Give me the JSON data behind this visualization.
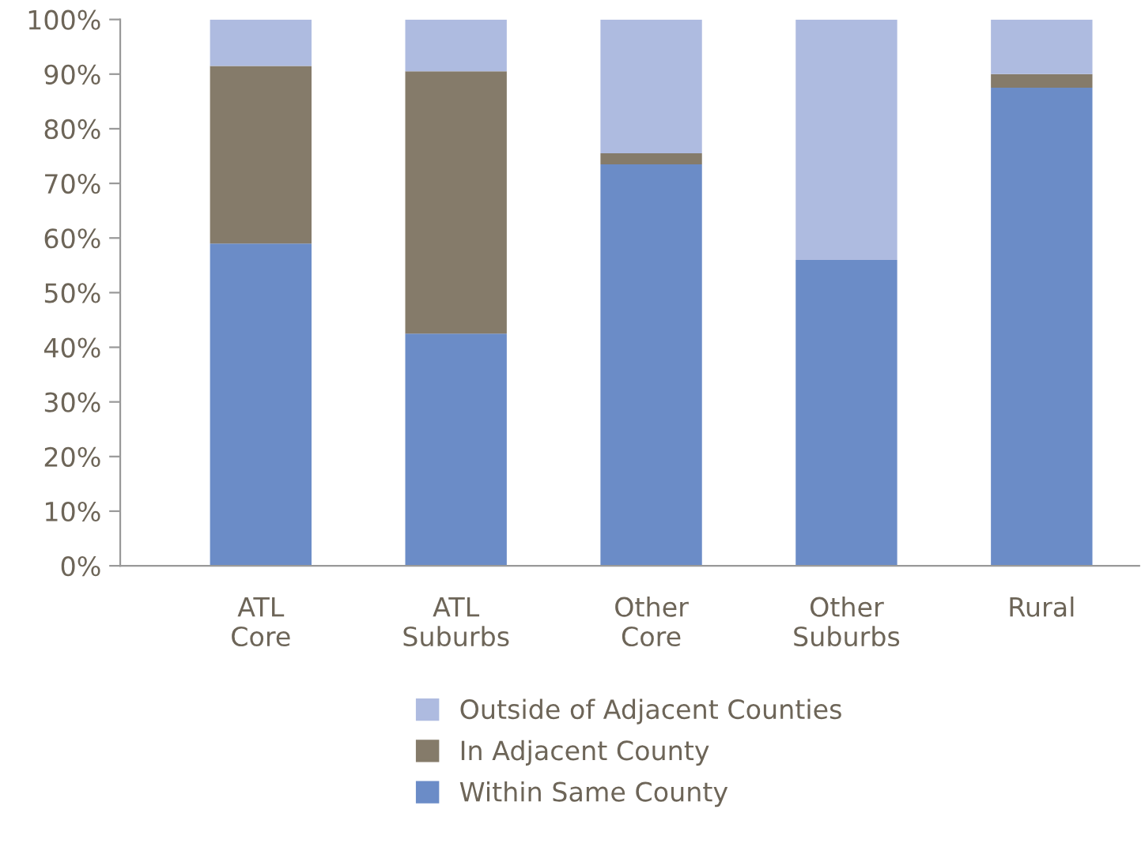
{
  "chart_data": {
    "type": "bar",
    "stacked": true,
    "categories": [
      "ATL\nCore",
      "ATL\nSuburbs",
      "Other\nCore",
      "Other\nSuburbs",
      "Rural"
    ],
    "series": [
      {
        "name": "Within Same County",
        "color": "#6b8cc7",
        "values": [
          59,
          42.5,
          73.5,
          56,
          87.5
        ]
      },
      {
        "name": "In Adjacent County",
        "color": "#857b6a",
        "values": [
          32.5,
          48,
          2,
          0,
          2.5
        ]
      },
      {
        "name": "Outside of Adjacent Counties",
        "color": "#aebbe0",
        "values": [
          8.5,
          9.5,
          24.5,
          44,
          10
        ]
      }
    ],
    "ylim": [
      0,
      100
    ],
    "yticks": [
      {
        "value": 0,
        "label": "0%"
      },
      {
        "value": 10,
        "label": "10%"
      },
      {
        "value": 20,
        "label": "20%"
      },
      {
        "value": 30,
        "label": "30%"
      },
      {
        "value": 40,
        "label": "40%"
      },
      {
        "value": 50,
        "label": "50%"
      },
      {
        "value": 60,
        "label": "60%"
      },
      {
        "value": 70,
        "label": "70%"
      },
      {
        "value": 80,
        "label": "80%"
      },
      {
        "value": 90,
        "label": "90%"
      },
      {
        "value": 100,
        "label": "100%"
      }
    ],
    "grid": false,
    "legend": "bottom"
  }
}
